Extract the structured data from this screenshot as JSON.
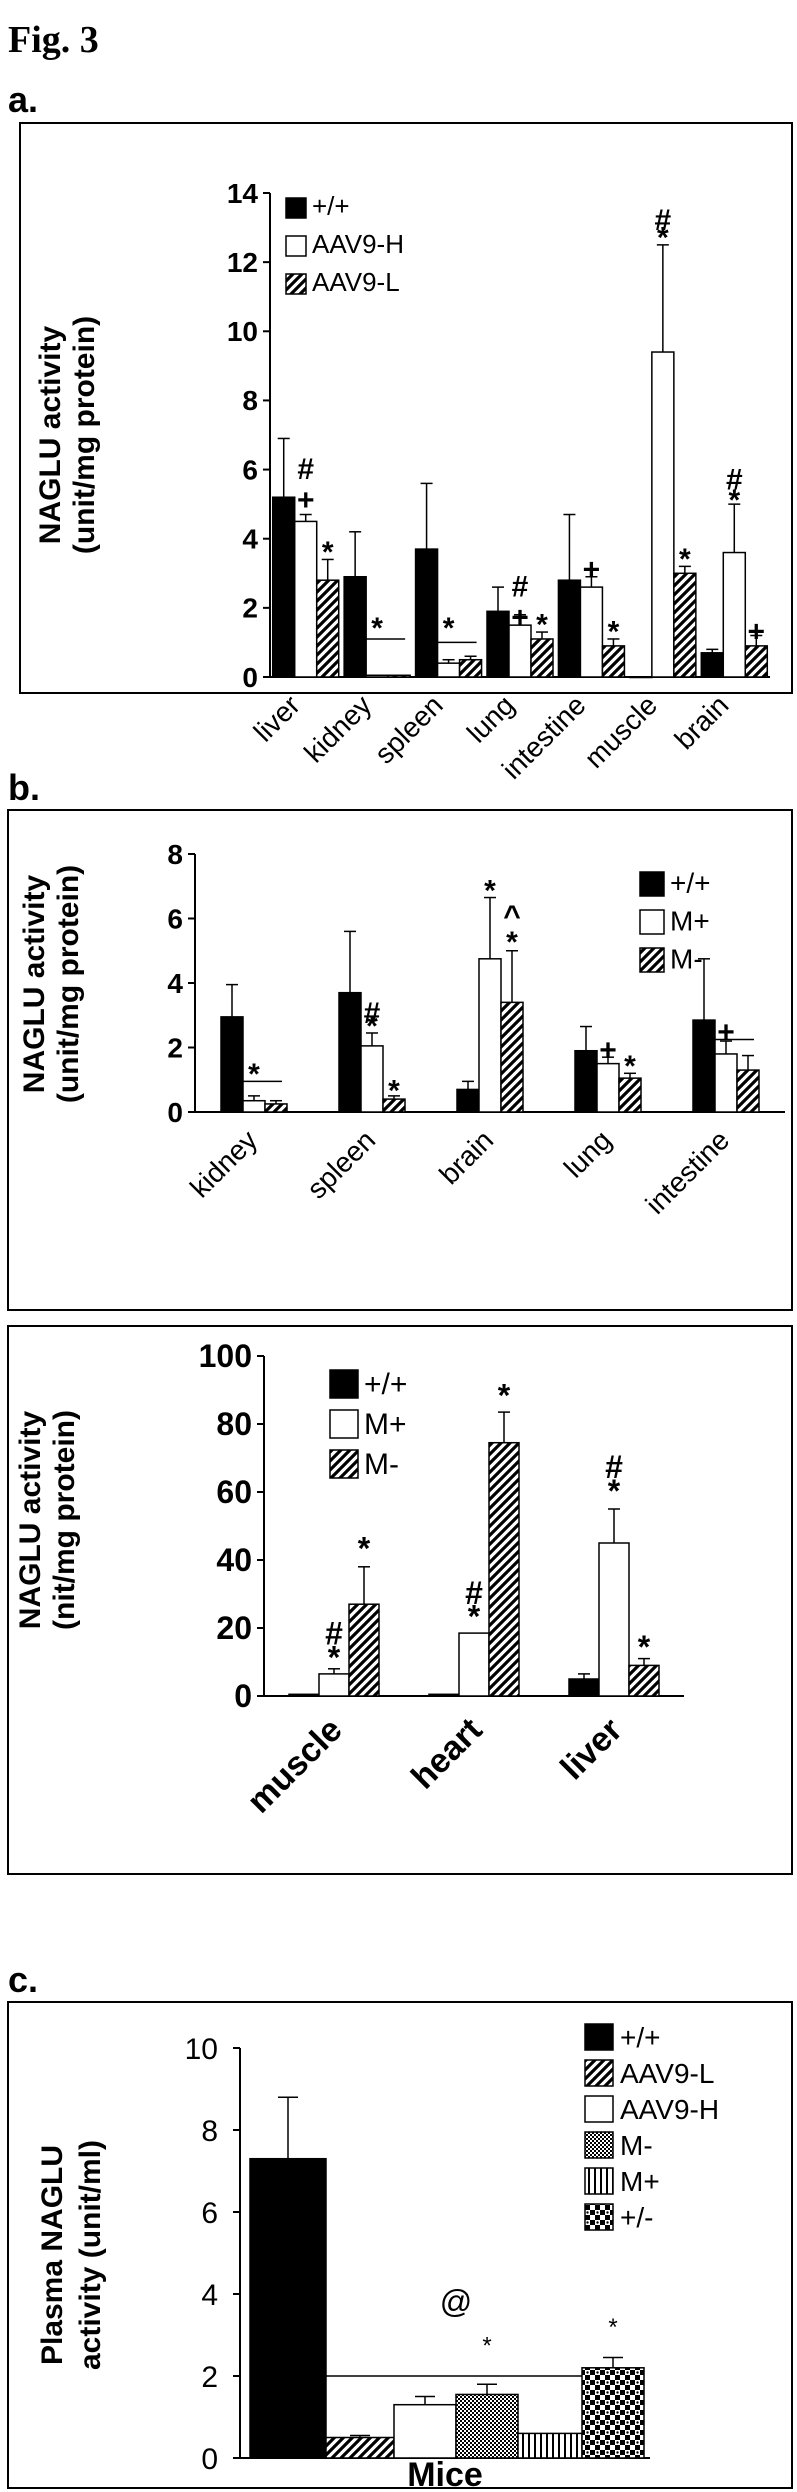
{
  "figure_title": "Fig. 3",
  "panel_labels": {
    "a": "a.",
    "b": "b.",
    "c": "c."
  },
  "chart_data": [
    {
      "id": "a",
      "type": "bar",
      "title": "",
      "ylabel": "NAGLU activity (unit/mg protein)",
      "ylabel_lines": [
        "NAGLU activity",
        "(unit/mg protein)"
      ],
      "xlabel": "",
      "ylim": [
        0,
        14
      ],
      "yticks": [
        0,
        2,
        4,
        6,
        8,
        10,
        12,
        14
      ],
      "categories": [
        "liver",
        "kidney",
        "spleen",
        "lung",
        "intestine",
        "muscle",
        "brain"
      ],
      "legend_position": "top-left",
      "series": [
        {
          "name": "+/+",
          "pattern": "solid",
          "values": [
            5.2,
            2.9,
            3.7,
            1.9,
            2.8,
            0,
            0.7
          ],
          "errors": [
            1.7,
            1.3,
            1.9,
            0.7,
            1.9,
            0,
            0.1
          ]
        },
        {
          "name": "AAV9-H",
          "pattern": "white",
          "values": [
            4.5,
            0.05,
            0.4,
            1.5,
            2.6,
            9.4,
            3.6
          ],
          "errors": [
            0.2,
            0,
            0.1,
            0.3,
            0.3,
            3.1,
            1.4
          ]
        },
        {
          "name": "AAV9-L",
          "pattern": "hatch",
          "values": [
            2.8,
            0.05,
            0.5,
            1.1,
            0.9,
            3.0,
            0.9
          ],
          "errors": [
            0.6,
            0,
            0.1,
            0.2,
            0.2,
            0.2,
            0.3
          ]
        }
      ],
      "annotations": [
        {
          "text": "#",
          "cat": 0,
          "s": 1,
          "v": 5.9
        },
        {
          "text": "+",
          "cat": 0,
          "s": 1,
          "v": 5.0
        },
        {
          "text": "*",
          "cat": 0,
          "s": 2,
          "v": 3.5
        },
        {
          "text": "*",
          "cat": 1,
          "s": 1,
          "v": 1.3
        },
        {
          "text": "*",
          "cat": 2,
          "s": 1,
          "v": 1.3
        },
        {
          "text": "#",
          "cat": 3,
          "s": 1,
          "v": 2.5
        },
        {
          "text": "+",
          "cat": 3,
          "s": 1,
          "v": 1.6
        },
        {
          "text": "*",
          "cat": 3,
          "s": 2,
          "v": 1.4
        },
        {
          "text": "+",
          "cat": 4,
          "s": 1,
          "v": 3.0
        },
        {
          "text": "*",
          "cat": 4,
          "s": 2,
          "v": 1.2
        },
        {
          "text": "#",
          "cat": 5,
          "s": 1,
          "v": 13.1
        },
        {
          "text": "*",
          "cat": 5,
          "s": 1,
          "v": 12.6
        },
        {
          "text": "*",
          "cat": 5,
          "s": 2,
          "v": 3.3
        },
        {
          "text": "#",
          "cat": 6,
          "s": 1,
          "v": 5.6
        },
        {
          "text": "*",
          "cat": 6,
          "s": 1,
          "v": 5.0
        },
        {
          "text": "+",
          "cat": 6,
          "s": 2,
          "v": 1.2
        }
      ],
      "brackets": [
        {
          "cat": 1,
          "v": 1.1
        },
        {
          "cat": 2,
          "v": 1.0
        }
      ]
    },
    {
      "id": "b-top",
      "type": "bar",
      "title": "",
      "ylabel": "NAGLU activity (unit/mg protein)",
      "ylabel_lines": [
        "NAGLU activity",
        "(unit/mg protein)"
      ],
      "xlabel": "",
      "ylim": [
        0,
        8
      ],
      "yticks": [
        0,
        2,
        4,
        6,
        8
      ],
      "categories": [
        "kidney",
        "spleen",
        "brain",
        "lung",
        "intestine"
      ],
      "legend_position": "top-right",
      "series": [
        {
          "name": "+/+",
          "pattern": "solid",
          "values": [
            2.95,
            3.7,
            0.7,
            1.9,
            2.85
          ],
          "errors": [
            1.0,
            1.9,
            0.25,
            0.75,
            1.9
          ]
        },
        {
          "name": "M+",
          "pattern": "white",
          "values": [
            0.35,
            2.05,
            4.75,
            1.5,
            1.8
          ],
          "errors": [
            0.15,
            0.4,
            1.9,
            0.2,
            0.4
          ]
        },
        {
          "name": "M-",
          "pattern": "hatch",
          "values": [
            0.25,
            0.4,
            3.4,
            1.05,
            1.3
          ],
          "errors": [
            0.1,
            0.1,
            1.6,
            0.15,
            0.45
          ]
        }
      ],
      "annotations": [
        {
          "text": "*",
          "cat": 0,
          "s": 1,
          "v": 1.05
        },
        {
          "text": "#",
          "cat": 1,
          "s": 1,
          "v": 2.95
        },
        {
          "text": "*",
          "cat": 1,
          "s": 1,
          "v": 2.55
        },
        {
          "text": "*",
          "cat": 1,
          "s": 2,
          "v": 0.55
        },
        {
          "text": "*",
          "cat": 2,
          "s": 1,
          "v": 6.75
        },
        {
          "text": "^",
          "cat": 2,
          "s": 2,
          "v": 5.95
        },
        {
          "text": "*",
          "cat": 2,
          "s": 2,
          "v": 5.15
        },
        {
          "text": "+",
          "cat": 3,
          "s": 1,
          "v": 1.8
        },
        {
          "text": "*",
          "cat": 3,
          "s": 2,
          "v": 1.3
        },
        {
          "text": "+",
          "cat": 4,
          "s": 1,
          "v": 2.35
        }
      ],
      "brackets": [
        {
          "cat": 0,
          "v": 0.95
        },
        {
          "cat": 4,
          "v": 2.25
        }
      ]
    },
    {
      "id": "b-bottom",
      "type": "bar",
      "title": "",
      "ylabel": "NAGLU activity (nit/mg protein)",
      "ylabel_lines": [
        "NAGLU activity",
        "(nit/mg protein)"
      ],
      "xlabel": "",
      "ylim": [
        0,
        100
      ],
      "yticks": [
        0,
        20,
        40,
        60,
        80,
        100
      ],
      "categories": [
        "muscle",
        "heart",
        "liver"
      ],
      "legend_position": "top-left",
      "series": [
        {
          "name": "+/+",
          "pattern": "solid",
          "values": [
            0.5,
            0.5,
            5
          ],
          "errors": [
            0,
            0,
            1.5
          ]
        },
        {
          "name": "M+",
          "pattern": "white",
          "values": [
            6.5,
            18.5,
            45
          ],
          "errors": [
            1.5,
            0,
            10
          ]
        },
        {
          "name": "M-",
          "pattern": "hatch",
          "values": [
            27,
            74.5,
            9
          ],
          "errors": [
            11,
            9,
            2
          ]
        }
      ],
      "annotations": [
        {
          "text": "#",
          "cat": 0,
          "s": 1,
          "v": 17
        },
        {
          "text": "*",
          "cat": 0,
          "s": 1,
          "v": 10
        },
        {
          "text": "*",
          "cat": 0,
          "s": 2,
          "v": 42
        },
        {
          "text": "#",
          "cat": 1,
          "s": 1,
          "v": 29
        },
        {
          "text": "*",
          "cat": 1,
          "s": 1,
          "v": 22
        },
        {
          "text": "*",
          "cat": 1,
          "s": 2,
          "v": 87
        },
        {
          "text": "#",
          "cat": 2,
          "s": 1,
          "v": 66
        },
        {
          "text": "*",
          "cat": 2,
          "s": 1,
          "v": 59
        },
        {
          "text": "*",
          "cat": 2,
          "s": 2,
          "v": 13
        }
      ],
      "brackets": []
    },
    {
      "id": "c",
      "type": "bar",
      "title": "",
      "ylabel": "Plasma NAGLU activity (unit/ml)",
      "ylabel_lines": [
        "Plasma NAGLU",
        "activity (unit/ml)"
      ],
      "xlabel": "Mice",
      "ylim": [
        0,
        10
      ],
      "yticks": [
        0,
        2,
        4,
        6,
        8,
        10
      ],
      "categories": [
        "Mice"
      ],
      "legend_position": "top-right",
      "series": [
        {
          "name": "+/+",
          "pattern": "solid",
          "values": [
            7.3
          ],
          "errors": [
            1.5
          ]
        },
        {
          "name": "AAV9-L",
          "pattern": "hatch",
          "values": [
            0.5
          ],
          "errors": [
            0.05
          ]
        },
        {
          "name": "AAV9-H",
          "pattern": "white",
          "values": [
            1.3
          ],
          "errors": [
            0.2
          ]
        },
        {
          "name": "M-",
          "pattern": "dots",
          "values": [
            1.55
          ],
          "errors": [
            0.25
          ]
        },
        {
          "name": "M+",
          "pattern": "vlines",
          "values": [
            0.6
          ],
          "errors": [
            0
          ]
        },
        {
          "name": "+/-",
          "pattern": "check",
          "values": [
            2.2
          ],
          "errors": [
            0.25
          ]
        }
      ],
      "annotations": [
        {
          "text": "@",
          "s": 3,
          "v": 3.55,
          "big": true
        },
        {
          "text": "*",
          "s": 3,
          "v": 2.55
        },
        {
          "text": "*",
          "s": 5,
          "v": 3.0
        }
      ],
      "span_line": {
        "from": 1,
        "to": 4,
        "v": 2.0
      }
    }
  ]
}
